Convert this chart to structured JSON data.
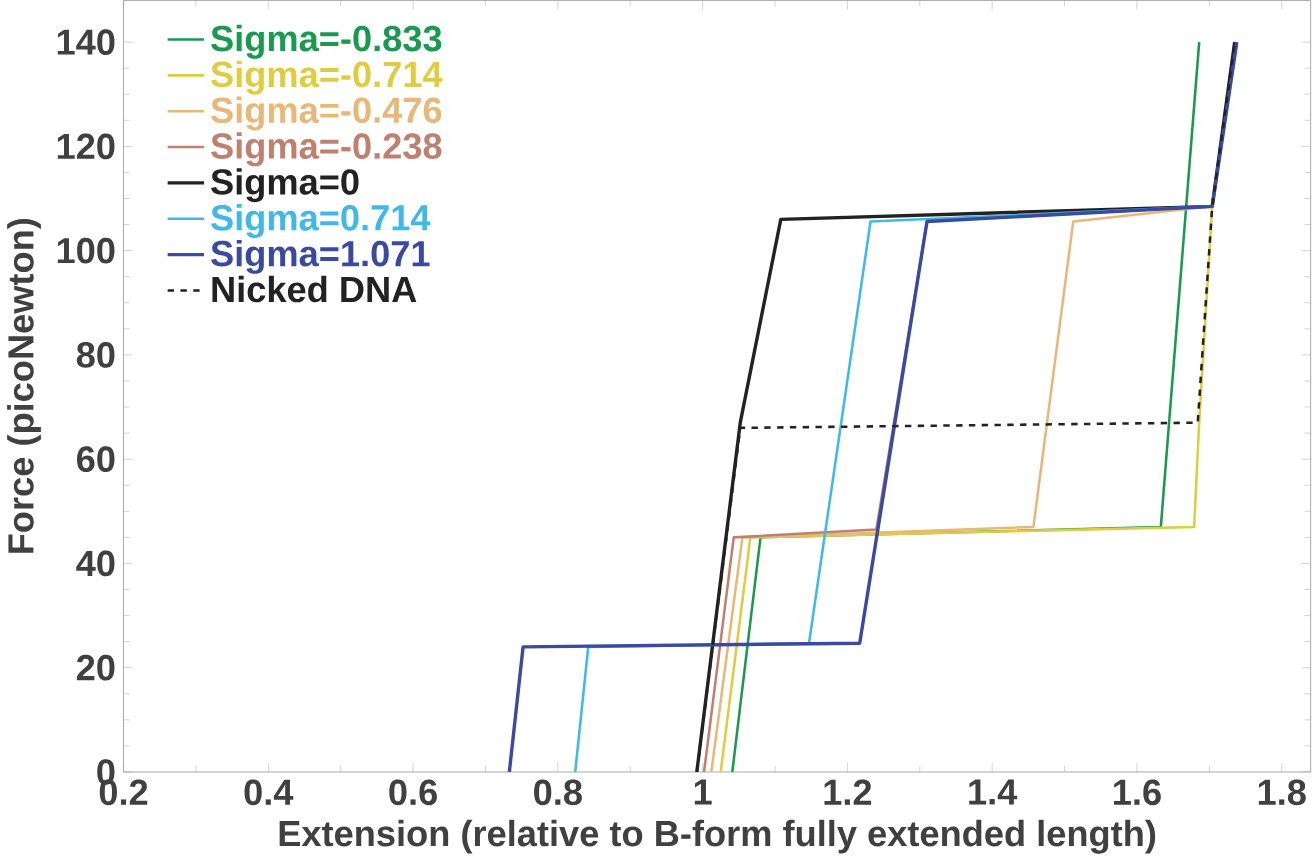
{
  "chart_data": {
    "type": "line",
    "xlabel": "Extension (relative to B-form fully extended length)",
    "ylabel": "Force (picoNewton)",
    "xlim": [
      0.2,
      1.84
    ],
    "ylim": [
      0,
      148
    ],
    "xticks": [
      0.2,
      0.4,
      0.6,
      0.8,
      1,
      1.2,
      1.4,
      1.6,
      1.8
    ],
    "yticks": [
      0,
      20,
      40,
      60,
      80,
      100,
      120,
      140
    ],
    "legend": "top left",
    "grid": false,
    "marker": "none",
    "series": [
      {
        "name": "Sigma=-0.833",
        "color": "#1a9a50",
        "x": [
          1.041,
          1.08,
          1.633,
          1.686
        ],
        "values": [
          0,
          45,
          47,
          140
        ]
      },
      {
        "name": "Sigma=-0.714",
        "color": "#e0cc40",
        "x": [
          1.025,
          1.066,
          1.679,
          1.686,
          1.704,
          1.736
        ],
        "values": [
          0,
          45,
          47,
          67,
          108.5,
          140
        ]
      },
      {
        "name": "Sigma=-0.476",
        "color": "#e8b878",
        "x": [
          1.012,
          1.055,
          1.457,
          1.512,
          1.704,
          1.736
        ],
        "values": [
          0,
          45,
          47,
          105.6,
          108.5,
          140
        ]
      },
      {
        "name": "Sigma=-0.238",
        "color": "#c08070",
        "x": [
          1.002,
          1.043,
          1.24,
          1.31,
          1.704,
          1.736
        ],
        "values": [
          0,
          45,
          46.5,
          105.6,
          108.5,
          140
        ]
      },
      {
        "name": "Sigma=0",
        "color": "#222222",
        "x": [
          0.992,
          1.052,
          1.108,
          1.704,
          1.735
        ],
        "values": [
          0,
          67,
          106,
          108.5,
          140
        ]
      },
      {
        "name": "Sigma=0.714",
        "color": "#40b8e8",
        "x": [
          0.824,
          0.842,
          1.147,
          1.232,
          1.704,
          1.738
        ],
        "values": [
          0,
          24,
          24.7,
          105.6,
          108.5,
          140
        ]
      },
      {
        "name": "Sigma=1.071",
        "color": "#3a4aa0",
        "x": [
          0.733,
          0.752,
          1.217,
          1.31,
          1.704,
          1.738
        ],
        "values": [
          0,
          24,
          24.7,
          105.6,
          108.5,
          140
        ]
      },
      {
        "name": "Nicked DNA",
        "color": "#222222",
        "line_style": "dashed",
        "x": [
          0.992,
          1.052,
          1.684,
          1.704,
          1.735
        ],
        "values": [
          0,
          66,
          67,
          108.5,
          140
        ]
      }
    ]
  }
}
